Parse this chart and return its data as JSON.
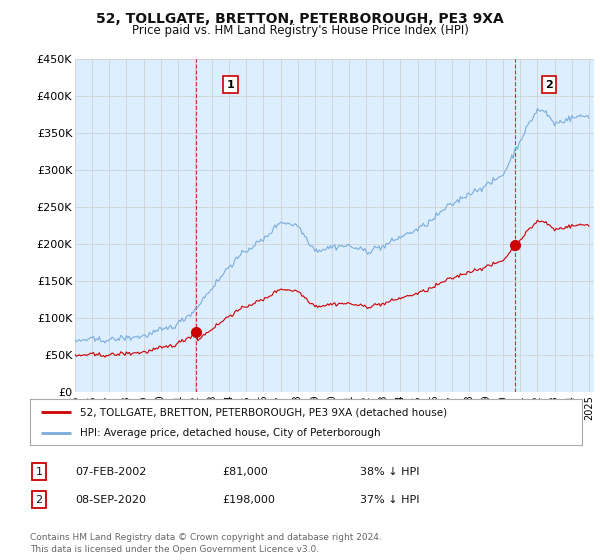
{
  "title": "52, TOLLGATE, BRETTON, PETERBOROUGH, PE3 9XA",
  "subtitle": "Price paid vs. HM Land Registry's House Price Index (HPI)",
  "legend_line1": "52, TOLLGATE, BRETTON, PETERBOROUGH, PE3 9XA (detached house)",
  "legend_line2": "HPI: Average price, detached house, City of Peterborough",
  "footnote": "Contains HM Land Registry data © Crown copyright and database right 2024.\nThis data is licensed under the Open Government Licence v3.0.",
  "table_row1": [
    "1",
    "07-FEB-2002",
    "£81,000",
    "38% ↓ HPI"
  ],
  "table_row2": [
    "2",
    "08-SEP-2020",
    "£198,000",
    "37% ↓ HPI"
  ],
  "red_color": "#cc0000",
  "blue_color": "#7aaddc",
  "plot_bg_color": "#ddeeff",
  "marker1_year": 2002.08,
  "marker1_value": 81000,
  "marker2_year": 2020.67,
  "marker2_value": 198000,
  "vline1_year": 2002.08,
  "vline2_year": 2020.67,
  "ylim": [
    0,
    450000
  ],
  "yticks": [
    0,
    50000,
    100000,
    150000,
    200000,
    250000,
    300000,
    350000,
    400000,
    450000
  ],
  "ytick_labels": [
    "£0",
    "£50K",
    "£100K",
    "£150K",
    "£200K",
    "£250K",
    "£300K",
    "£350K",
    "£400K",
    "£450K"
  ],
  "xlim_start": 1995.0,
  "xlim_end": 2025.3,
  "background_color": "#ffffff",
  "grid_color": "#cccccc"
}
